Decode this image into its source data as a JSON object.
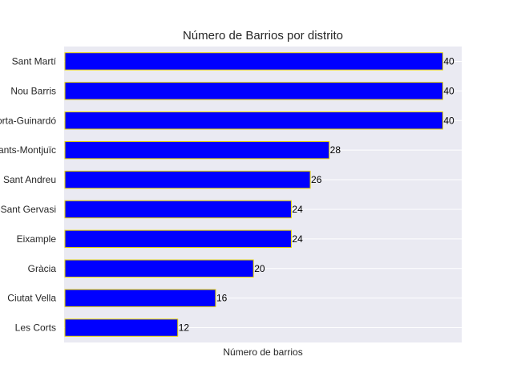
{
  "chart_data": {
    "type": "bar",
    "orientation": "horizontal",
    "title": "Número de Barrios por distrito",
    "xlabel": "Número de barrios",
    "ylabel": "",
    "categories": [
      "Sant Martí",
      "Nou Barris",
      "Horta-Guinardó",
      "Sants-Montjuïc",
      "Sant Andreu",
      "Sarrià-Sant Gervasi",
      "Eixample",
      "Gràcia",
      "Ciutat Vella",
      "Les Corts"
    ],
    "values": [
      40,
      40,
      40,
      28,
      26,
      24,
      24,
      20,
      16,
      12
    ],
    "xlim": [
      0,
      42
    ],
    "grid": true,
    "legend": "none",
    "colors": {
      "bar": "#0000ff",
      "bar_edge": "#e6d200",
      "plot_bg": "#eaeaf2",
      "grid": "#ffffff"
    }
  }
}
